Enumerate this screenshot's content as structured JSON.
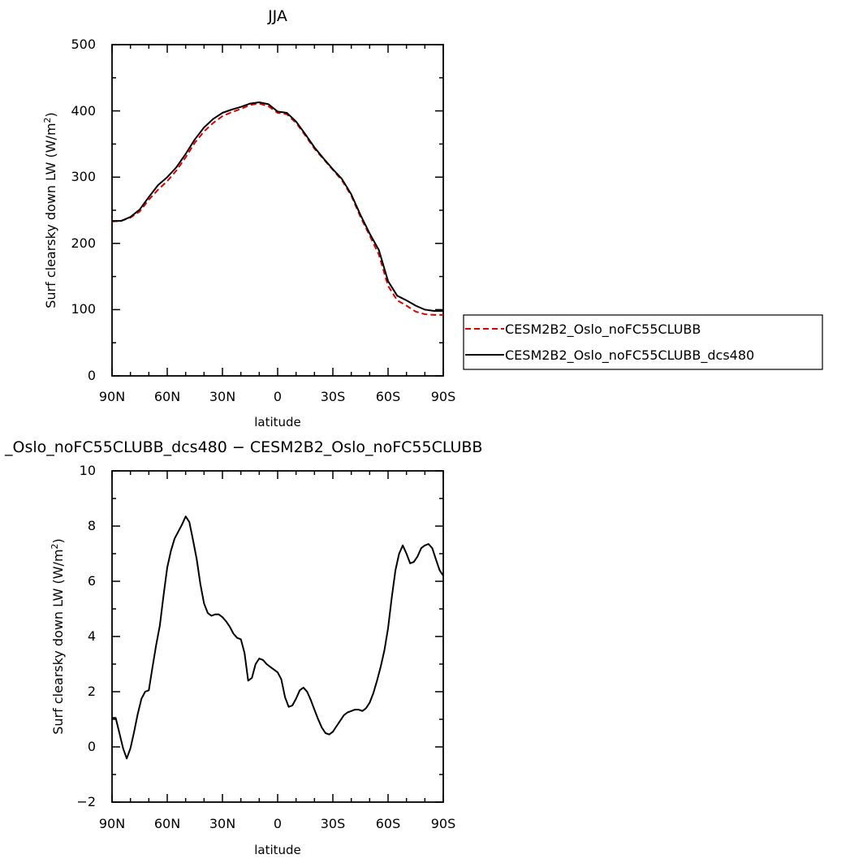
{
  "chart_data": [
    {
      "type": "line",
      "title": "JJA",
      "xlabel": "latitude",
      "ylabel": "Surf clearsky down LW (W/m",
      "ylabel_sup": "2",
      "ylabel_end": ")",
      "x_ticks": [
        "90N",
        "60N",
        "30N",
        "0",
        "30S",
        "60S",
        "90S"
      ],
      "y_ticks": [
        "0",
        "100",
        "200",
        "300",
        "400",
        "500"
      ],
      "xlim": [
        90,
        -90
      ],
      "ylim": [
        0,
        500
      ],
      "grid": false,
      "legend_position": "right",
      "series": [
        {
          "name": "CESM2B2_Oslo_noFC55CLUBB",
          "color": "#dd0000",
          "dash": "dashed",
          "x": [
            90,
            85,
            80,
            75,
            70,
            65,
            60,
            55,
            50,
            45,
            40,
            35,
            30,
            25,
            20,
            15,
            10,
            5,
            0,
            -5,
            -10,
            -15,
            -20,
            -25,
            -30,
            -35,
            -40,
            -45,
            -50,
            -55,
            -60,
            -65,
            -70,
            -75,
            -80,
            -85,
            -90
          ],
          "values": [
            233,
            234,
            239,
            248,
            266,
            281,
            294,
            310,
            330,
            352,
            369,
            382,
            392,
            398,
            403,
            409,
            411,
            407,
            397,
            395,
            382,
            363,
            343,
            327,
            311,
            295,
            272,
            240,
            212,
            183,
            136,
            114,
            106,
            97,
            93,
            92,
            92
          ]
        },
        {
          "name": "CESM2B2_Oslo_noFC55CLUBB_dcs480",
          "color": "#000000",
          "dash": "solid",
          "x": [
            90,
            85,
            80,
            75,
            70,
            65,
            60,
            55,
            50,
            45,
            40,
            35,
            30,
            25,
            20,
            15,
            10,
            5,
            0,
            -5,
            -10,
            -15,
            -20,
            -25,
            -30,
            -35,
            -40,
            -45,
            -50,
            -55,
            -60,
            -65,
            -70,
            -75,
            -80,
            -85,
            -90
          ],
          "values": [
            234,
            234,
            240,
            251,
            270,
            288,
            300,
            315,
            335,
            357,
            375,
            388,
            397,
            402,
            406,
            411,
            413,
            410,
            399,
            397,
            384,
            365,
            345,
            328,
            312,
            297,
            274,
            243,
            215,
            190,
            143,
            121,
            114,
            106,
            100,
            98,
            98
          ]
        }
      ]
    },
    {
      "type": "line",
      "title": "_Oslo_noFC55CLUBB_dcs480 − CESM2B2_Oslo_noFC55CLUBB",
      "xlabel": "latitude",
      "ylabel": "Surf clearsky down LW (W/m",
      "ylabel_sup": "2",
      "ylabel_end": ")",
      "x_ticks": [
        "90N",
        "60N",
        "30N",
        "0",
        "30S",
        "60S",
        "90S"
      ],
      "y_ticks": [
        "−2",
        "0",
        "2",
        "4",
        "6",
        "8",
        "10"
      ],
      "xlim": [
        90,
        -90
      ],
      "ylim": [
        -2,
        10
      ],
      "grid": false,
      "series": [
        {
          "color": "#000000",
          "dash": "solid",
          "x": [
            90,
            88,
            86,
            84,
            82,
            80,
            78,
            76,
            74,
            72,
            70,
            68,
            66,
            64,
            62,
            60,
            58,
            56,
            54,
            52,
            50,
            48,
            46,
            44,
            42,
            40,
            38,
            36,
            34,
            32,
            30,
            28,
            26,
            24,
            22,
            20,
            18,
            16,
            14,
            12,
            10,
            8,
            6,
            4,
            2,
            0,
            -2,
            -4,
            -6,
            -8,
            -10,
            -12,
            -14,
            -16,
            -18,
            -20,
            -22,
            -24,
            -26,
            -28,
            -30,
            -32,
            -34,
            -36,
            -38,
            -40,
            -42,
            -44,
            -46,
            -48,
            -50,
            -52,
            -54,
            -56,
            -58,
            -60,
            -62,
            -64,
            -66,
            -68,
            -70,
            -72,
            -74,
            -76,
            -78,
            -80,
            -82,
            -84,
            -86,
            -88,
            -90
          ],
          "values": [
            1.05,
            1.05,
            0.5,
            -0.05,
            -0.42,
            -0.05,
            0.55,
            1.2,
            1.75,
            2.0,
            2.05,
            2.9,
            3.7,
            4.4,
            5.5,
            6.5,
            7.1,
            7.55,
            7.8,
            8.05,
            8.35,
            8.15,
            7.5,
            6.8,
            5.9,
            5.2,
            4.85,
            4.75,
            4.8,
            4.8,
            4.7,
            4.55,
            4.35,
            4.1,
            3.95,
            3.9,
            3.4,
            2.4,
            2.5,
            3.0,
            3.2,
            3.15,
            3.0,
            2.9,
            2.8,
            2.7,
            2.45,
            1.8,
            1.45,
            1.5,
            1.75,
            2.05,
            2.15,
            2.0,
            1.7,
            1.35,
            1.0,
            0.7,
            0.5,
            0.45,
            0.55,
            0.75,
            0.95,
            1.15,
            1.25,
            1.3,
            1.35,
            1.35,
            1.3,
            1.4,
            1.6,
            1.95,
            2.4,
            2.9,
            3.5,
            4.3,
            5.4,
            6.4,
            7.0,
            7.3,
            7.0,
            6.65,
            6.7,
            6.9,
            7.2,
            7.3,
            7.35,
            7.2,
            6.8,
            6.4,
            6.2
          ]
        }
      ]
    }
  ]
}
